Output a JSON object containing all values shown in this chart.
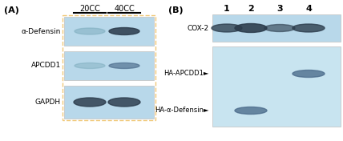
{
  "bg_color": "#ffffff",
  "panel_bg": "#b8d8ea",
  "panel_bg_light": "#c8e4f0",
  "white_bg": "#ffffff",
  "dark_band": "#2a3a4a",
  "medium_band": "#4a6a8a",
  "light_band": "#7aaabb",
  "border_color": "#c0c0c0",
  "orange_border": "#f0c878",
  "panel_A_label": "(A)",
  "panel_B_label": "(B)",
  "col_labels_A": [
    "20CC",
    "40CC"
  ],
  "row_labels_A": [
    "α-Defensin",
    "APCDD1",
    "GAPDH"
  ],
  "lane_labels_B": [
    "1",
    "2",
    "3",
    "4"
  ],
  "row_labels_B_cox": "COX-2",
  "row_labels_B_apcdd1": "HA-APCDD1►",
  "row_labels_B_defensin": "HA-α-Defensin►",
  "fig_width": 4.28,
  "fig_height": 1.76,
  "dpi": 100
}
